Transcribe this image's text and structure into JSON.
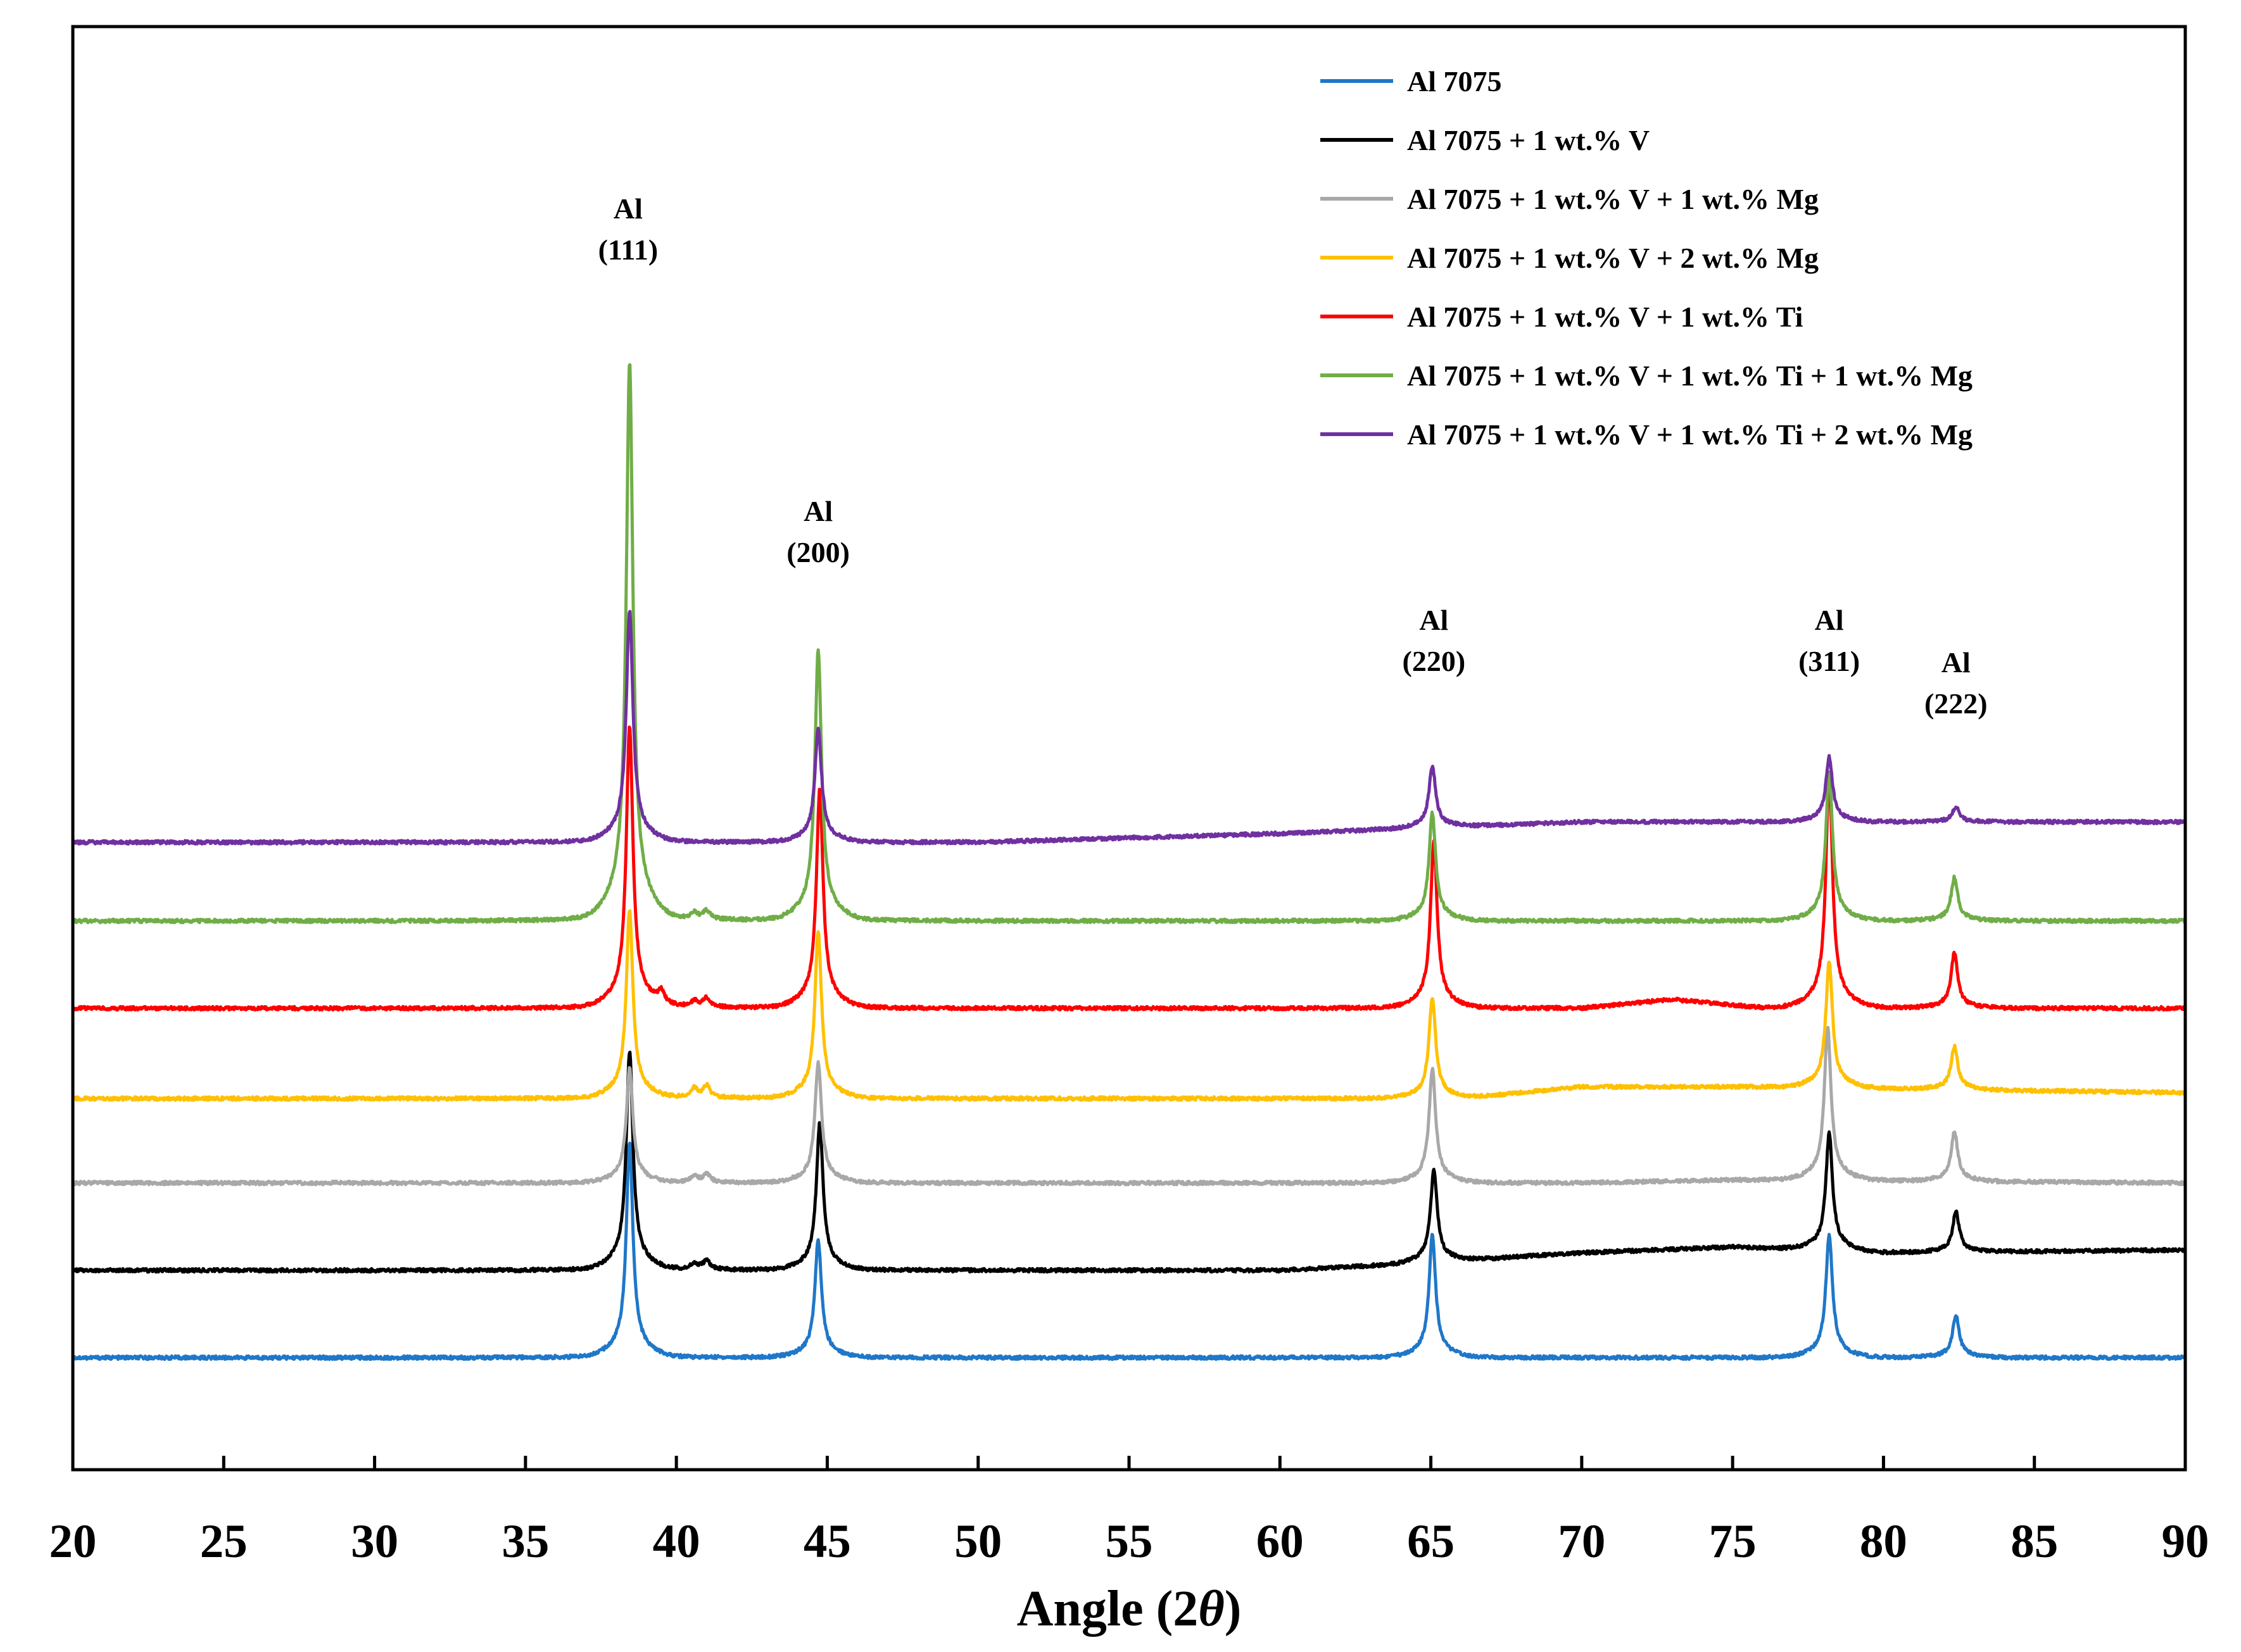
{
  "chart_data": {
    "type": "line",
    "title": "",
    "xlabel": "Angle (2θ)",
    "xlabel_parts": {
      "prefix": "Angle (2",
      "symbol": "θ",
      "suffix": ")"
    },
    "ylabel": "",
    "xlim": [
      20,
      90
    ],
    "x_ticks": [
      20,
      25,
      30,
      35,
      40,
      45,
      50,
      55,
      60,
      65,
      70,
      75,
      80,
      85,
      90
    ],
    "y_ticks": [],
    "grid": false,
    "legend_position": "top-right",
    "annotations": [
      {
        "line1": "Al",
        "line2": "(111)",
        "x": 38.4
      },
      {
        "line1": "Al",
        "line2": "(200)",
        "x": 44.7
      },
      {
        "line1": "Al",
        "line2": "(220)",
        "x": 65.1
      },
      {
        "line1": "Al",
        "line2": "(311)",
        "x": 78.2
      },
      {
        "line1": "Al",
        "line2": "(222)",
        "x": 82.4
      }
    ],
    "series": [
      {
        "name": "Al 7075",
        "color": "#1f77c8",
        "baseline": 0,
        "drift": [
          [
            20,
            0
          ],
          [
            90,
            0
          ]
        ],
        "peaks": [
          [
            38.45,
            70
          ],
          [
            44.7,
            38
          ],
          [
            65.05,
            40
          ],
          [
            78.2,
            40
          ],
          [
            82.4,
            14
          ]
        ]
      },
      {
        "name": "Al 7075 + 1 wt.% V",
        "color": "#000000",
        "baseline": 30,
        "drift": [
          [
            20,
            0
          ],
          [
            60,
            0
          ],
          [
            64,
            2
          ],
          [
            70,
            6
          ],
          [
            75,
            8
          ],
          [
            80,
            6
          ],
          [
            90,
            7
          ]
        ],
        "peaks": [
          [
            38.45,
            71
          ],
          [
            40.6,
            2
          ],
          [
            41.0,
            3
          ],
          [
            44.75,
            48
          ],
          [
            65.1,
            30
          ],
          [
            78.2,
            38
          ],
          [
            82.4,
            13
          ]
        ]
      },
      {
        "name": "Al 7075 + 1 wt.% V + 1 wt.% Mg",
        "color": "#a8a8a8",
        "baseline": 60,
        "drift": [
          [
            20,
            0
          ],
          [
            70,
            0
          ],
          [
            75,
            1
          ],
          [
            90,
            0
          ]
        ],
        "peaks": [
          [
            38.45,
            37
          ],
          [
            40.6,
            2
          ],
          [
            41.0,
            3
          ],
          [
            44.7,
            39
          ],
          [
            65.05,
            37
          ],
          [
            78.15,
            50
          ],
          [
            82.35,
            16
          ]
        ]
      },
      {
        "name": "Al 7075 + 1 wt.% V + 2 wt.% Mg",
        "color": "#ffc000",
        "baseline": 89,
        "drift": [
          [
            20,
            0
          ],
          [
            66,
            0
          ],
          [
            70,
            4
          ],
          [
            75,
            4
          ],
          [
            90,
            2
          ]
        ],
        "peaks": [
          [
            38.45,
            61
          ],
          [
            40.6,
            3
          ],
          [
            41.0,
            4
          ],
          [
            44.7,
            54
          ],
          [
            65.05,
            33
          ],
          [
            78.2,
            41
          ],
          [
            82.35,
            14
          ]
        ]
      },
      {
        "name": "Al 7075 + 1 wt.% V + 1 wt.% Ti",
        "color": "#ff0000",
        "baseline": 120,
        "drift": [
          [
            20,
            0
          ],
          [
            70,
            0
          ],
          [
            73,
            3
          ],
          [
            76,
            0
          ],
          [
            90,
            0
          ]
        ],
        "peaks": [
          [
            38.45,
            91
          ],
          [
            39.5,
            4
          ],
          [
            40.6,
            2
          ],
          [
            41.0,
            3
          ],
          [
            44.75,
            71
          ],
          [
            65.1,
            54
          ],
          [
            78.2,
            76
          ],
          [
            82.35,
            18
          ]
        ]
      },
      {
        "name": "Al 7075 + 1 wt.% V + 1 wt.% Ti + 1 wt.% Mg",
        "color": "#70ad47",
        "baseline": 150,
        "drift": [
          [
            20,
            0
          ],
          [
            90,
            0
          ]
        ],
        "peaks": [
          [
            38.45,
            181
          ],
          [
            40.6,
            2
          ],
          [
            41.0,
            3
          ],
          [
            44.7,
            88
          ],
          [
            65.05,
            35
          ],
          [
            78.2,
            48
          ],
          [
            82.35,
            14
          ]
        ]
      },
      {
        "name": "Al 7075 + 1 wt.% V + 1 wt.% Ti + 2 wt.% Mg",
        "color": "#7030a0",
        "baseline": 177,
        "drift": [
          [
            20,
            0
          ],
          [
            50,
            0
          ],
          [
            60,
            3
          ],
          [
            65,
            5
          ],
          [
            70,
            7
          ],
          [
            90,
            7
          ]
        ],
        "peaks": [
          [
            38.45,
            75
          ],
          [
            44.7,
            37
          ],
          [
            65.05,
            20
          ],
          [
            78.2,
            21
          ],
          [
            82.4,
            5
          ]
        ]
      }
    ]
  }
}
